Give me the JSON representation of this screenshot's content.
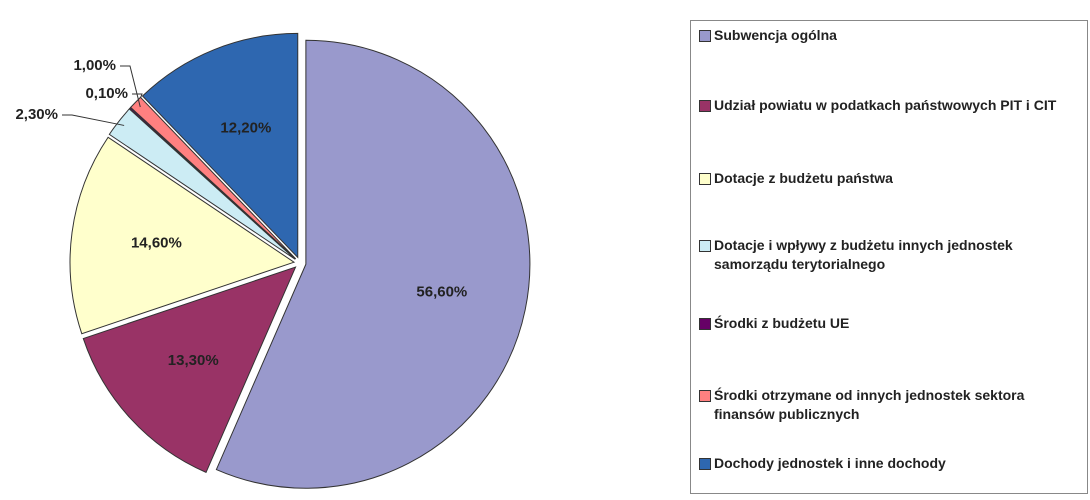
{
  "chart_data": {
    "type": "pie",
    "categories": [
      "Subwencja ogólna",
      "Udział powiatu w podatkach państwowych PIT i CIT",
      "Dotacje z budżetu państwa",
      "Dotacje i wpływy z budżetu innych jednostek samorządu terytorialnego",
      "Środki z budżetu UE",
      "Środki otrzymane od innych jednostek sektora finansów publicznych",
      "Dochody jednostek i inne dochody"
    ],
    "values": [
      56.6,
      13.3,
      14.6,
      2.3,
      0.1,
      1.0,
      12.2
    ],
    "value_labels": [
      "56,60%",
      "13,30%",
      "14,60%",
      "2,30%",
      "0,10%",
      "1,00%",
      "12,20%"
    ],
    "colors": [
      "#9999cc",
      "#993366",
      "#ffffcc",
      "#ccecf4",
      "#660066",
      "#ff8080",
      "#2e67b0"
    ],
    "legend": "right"
  }
}
